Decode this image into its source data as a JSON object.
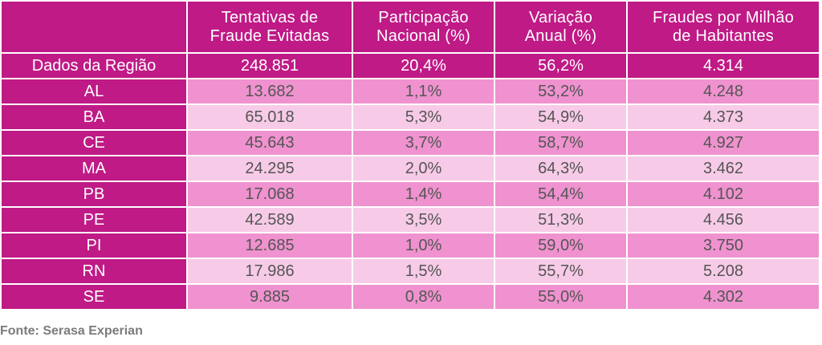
{
  "colors": {
    "header_bg": "#bf1a86",
    "row_dark": "#ef92cf",
    "row_light": "#f7cbe7",
    "value_text": "#555555",
    "source_text": "#7b7b7b"
  },
  "table": {
    "headers": [
      "",
      [
        "Tentativas de",
        "Fraude Evitadas"
      ],
      [
        "Participação",
        "Nacional (%)"
      ],
      [
        "Variação",
        "Anual (%)"
      ],
      [
        "Fraudes por Milhão",
        "de Habitantes"
      ]
    ],
    "summary": [
      "Dados da Região",
      "248.851",
      "20,4%",
      "56,2%",
      "4.314"
    ],
    "rows": [
      [
        "AL",
        "13.682",
        "1,1%",
        "53,2%",
        "4.248"
      ],
      [
        "BA",
        "65.018",
        "5,3%",
        "54,9%",
        "4.373"
      ],
      [
        "CE",
        "45.643",
        "3,7%",
        "58,7%",
        "4.927"
      ],
      [
        "MA",
        "24.295",
        "2,0%",
        "64,3%",
        "3.462"
      ],
      [
        "PB",
        "17.068",
        "1,4%",
        "54,4%",
        "4.102"
      ],
      [
        "PE",
        "42.589",
        "3,5%",
        "51,3%",
        "4.456"
      ],
      [
        "PI",
        "12.685",
        "1,0%",
        "59,0%",
        "3.750"
      ],
      [
        "RN",
        "17.986",
        "1,5%",
        "55,7%",
        "5.208"
      ],
      [
        "SE",
        "9.885",
        "0,8%",
        "55,0%",
        "4.302"
      ]
    ]
  },
  "source": "Fonte: Serasa Experian"
}
